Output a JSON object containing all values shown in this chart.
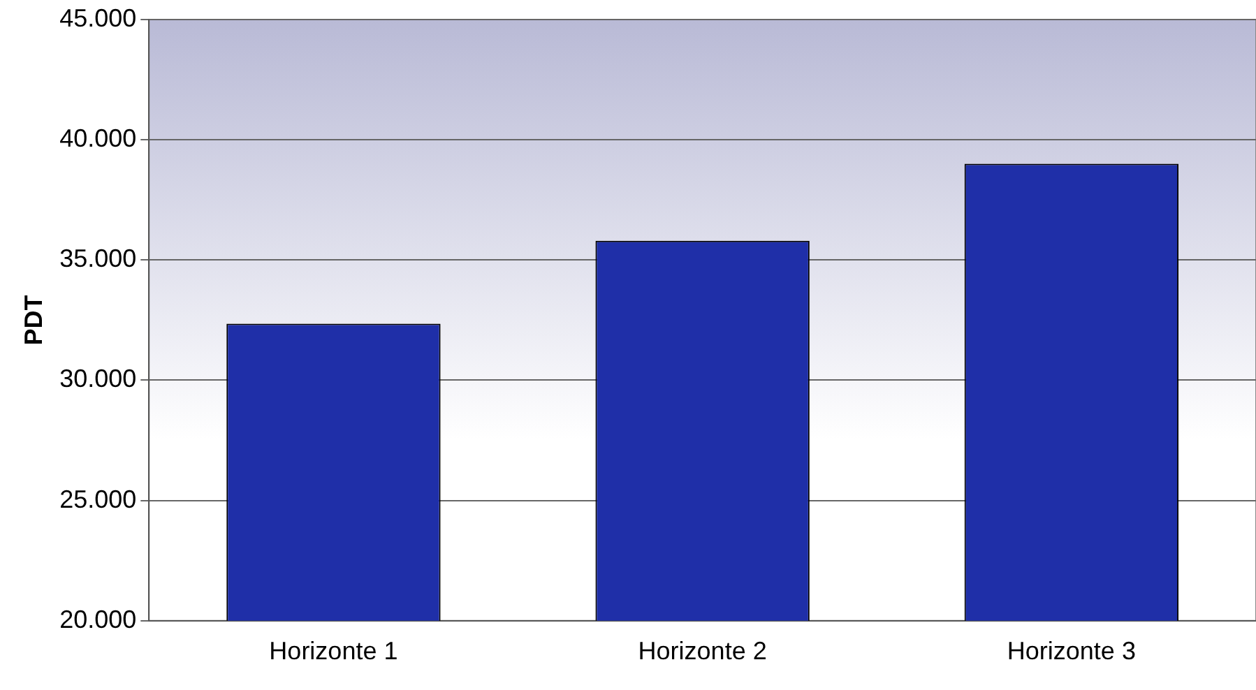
{
  "chart_data": {
    "type": "bar",
    "ylabel": "PDT",
    "categories": [
      "Horizonte 1",
      "Horizonte 2",
      "Horizonte 3"
    ],
    "values": [
      32350,
      35800,
      39000
    ],
    "color": "#1f2fa8",
    "ylim": [
      20000,
      45000
    ],
    "yticks": [
      {
        "value": 20000,
        "label": "20.000"
      },
      {
        "value": 25000,
        "label": "25.000"
      },
      {
        "value": 30000,
        "label": "30.000"
      },
      {
        "value": 35000,
        "label": "35.000"
      },
      {
        "value": 40000,
        "label": "40.000"
      },
      {
        "value": 45000,
        "label": "45.000"
      }
    ],
    "grid": "y",
    "legend": false
  }
}
